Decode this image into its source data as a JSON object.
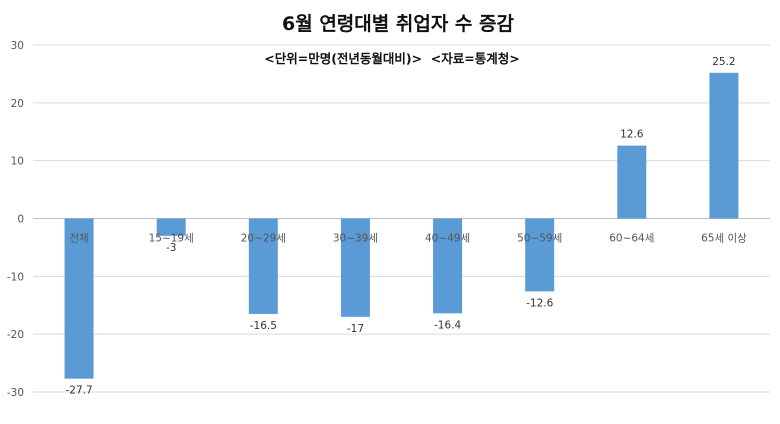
{
  "chart_data": {
    "type": "bar",
    "title": "6월 연령대별 취업자 수 증감",
    "subtitle": "<단위=만명(전년동월대비)>  <자료=통계청>",
    "categories": [
      "전체",
      "15~19세",
      "20~29세",
      "30~39세",
      "40~49세",
      "50~59세",
      "60~64세",
      "65세 이상"
    ],
    "values": [
      -27.7,
      -3,
      -16.5,
      -17,
      -16.4,
      -12.6,
      12.6,
      25.2
    ],
    "ylim": [
      -30,
      30
    ],
    "yticks": [
      30,
      20,
      10,
      0,
      -10,
      -20,
      -30
    ],
    "grid": true,
    "legend": "none",
    "bar_color": "#5b9bd5"
  }
}
